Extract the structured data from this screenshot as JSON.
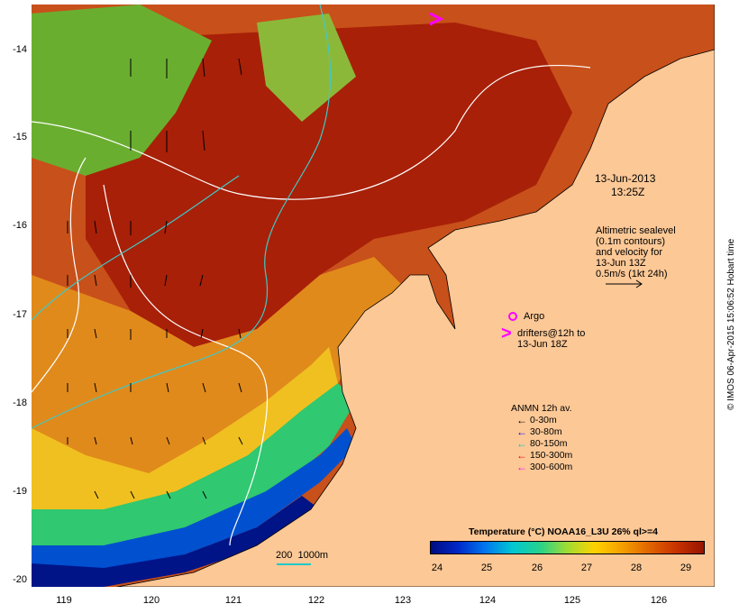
{
  "map": {
    "y_axis_ticks": [
      "-14",
      "-15",
      "-16",
      "-17",
      "-18",
      "-19",
      "-20"
    ],
    "x_axis_ticks": [
      "119",
      "120",
      "121",
      "122",
      "123",
      "124",
      "125",
      "126"
    ],
    "timestamp_line1": "13-Jun-2013",
    "timestamp_line2": "13:25Z",
    "altimetry_text": [
      "Altimetric sealevel",
      "(0.1m contours)",
      "and velocity for",
      "13-Jun 13Z",
      "0.5m/s (1kt 24h)"
    ],
    "argo_label": "Argo",
    "drifters_line1": "drifters@12h to",
    "drifters_line2": "13-Jun 18Z",
    "anmn_title": "ANMN 12h av.",
    "anmn_legend": [
      {
        "label": "0-30m",
        "color": "#000000"
      },
      {
        "label": "30-80m",
        "color": "#0000ff"
      },
      {
        "label": "80-150m",
        "color": "#00c8c8"
      },
      {
        "label": "150-300m",
        "color": "#ff0000"
      },
      {
        "label": "300-600m",
        "color": "#ff00ff"
      }
    ],
    "scale_bar_label": "200  1000m",
    "colorbar_title": "Temperature (°C) NOAA16_L3U 26% ql>=4",
    "colorbar_ticks": [
      "24",
      "25",
      "26",
      "27",
      "28",
      "29"
    ],
    "credit": "© IMOS 06-Apr-2015 15:06:52 Hobart time",
    "colors": {
      "land": "#fcc896",
      "warm": "#b83208",
      "mid": "#e68c1e",
      "cool": "#28d28c",
      "cold": "#0032c8",
      "contour": "#ffffff",
      "isobath": "#40c8c8",
      "drifter": "#ff00ff"
    }
  }
}
